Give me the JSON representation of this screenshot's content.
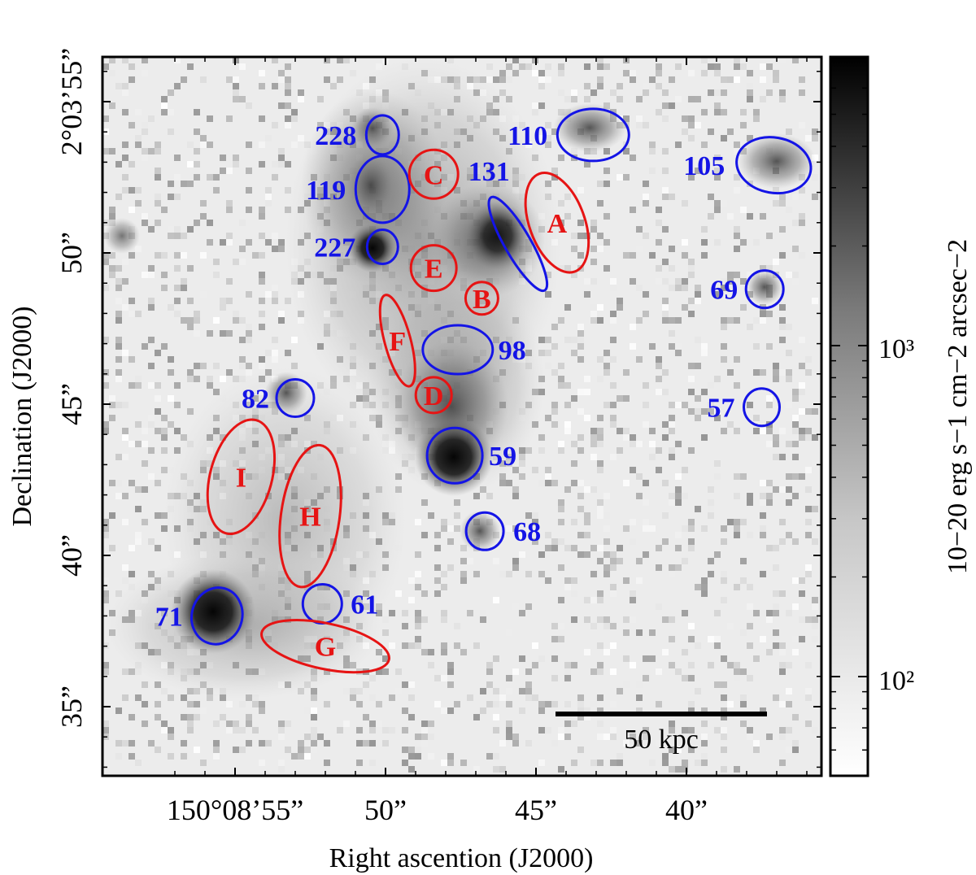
{
  "axes": {
    "x_title": "Right ascention (J2000)",
    "y_title": "Declination (J2000)",
    "x_ticks": [
      {
        "label": "150°08’55”",
        "ra_sec": 55
      },
      {
        "label": "50”",
        "ra_sec": 50
      },
      {
        "label": "45”",
        "ra_sec": 45
      },
      {
        "label": "40”",
        "ra_sec": 40
      }
    ],
    "y_ticks": [
      {
        "label": "2°03’55”",
        "dec_sec": 55
      },
      {
        "label": "50”",
        "dec_sec": 50
      },
      {
        "label": "45”",
        "dec_sec": 45
      },
      {
        "label": "40”",
        "dec_sec": 40
      },
      {
        "label": "35”",
        "dec_sec": 35
      }
    ]
  },
  "colorbar": {
    "label": "10−20 erg s−1 cm−2 arcsec−2",
    "tick_labels": [
      "10³",
      "10²"
    ]
  },
  "scale_bar": {
    "label": "50 kpc"
  },
  "colors": {
    "galaxy_marker": "#1414e6",
    "region_marker": "#e61414"
  },
  "galaxies": [
    {
      "id": "228",
      "ra_sec": 50.1,
      "dec_sec": 53.9
    },
    {
      "id": "119",
      "ra_sec": 50.1,
      "dec_sec": 52.1
    },
    {
      "id": "227",
      "ra_sec": 50.1,
      "dec_sec": 50.2
    },
    {
      "id": "131",
      "ra_sec": 45.6,
      "dec_sec": 50.3
    },
    {
      "id": "110",
      "ra_sec": 43.1,
      "dec_sec": 53.9
    },
    {
      "id": "105",
      "ra_sec": 37.1,
      "dec_sec": 52.9
    },
    {
      "id": "69",
      "ra_sec": 37.4,
      "dec_sec": 48.8
    },
    {
      "id": "98",
      "ra_sec": 47.6,
      "dec_sec": 46.8
    },
    {
      "id": "57",
      "ra_sec": 37.5,
      "dec_sec": 44.9
    },
    {
      "id": "82",
      "ra_sec": 53.0,
      "dec_sec": 45.2
    },
    {
      "id": "59",
      "ra_sec": 47.7,
      "dec_sec": 43.3
    },
    {
      "id": "68",
      "ra_sec": 46.7,
      "dec_sec": 40.8
    },
    {
      "id": "61",
      "ra_sec": 52.1,
      "dec_sec": 38.4
    },
    {
      "id": "71",
      "ra_sec": 55.6,
      "dec_sec": 38.0
    }
  ],
  "regions": [
    {
      "id": "C",
      "ra_sec": 48.4,
      "dec_sec": 52.6
    },
    {
      "id": "A",
      "ra_sec": 44.3,
      "dec_sec": 51.0
    },
    {
      "id": "E",
      "ra_sec": 48.4,
      "dec_sec": 49.5
    },
    {
      "id": "B",
      "ra_sec": 46.8,
      "dec_sec": 48.5
    },
    {
      "id": "F",
      "ra_sec": 49.6,
      "dec_sec": 47.1
    },
    {
      "id": "D",
      "ra_sec": 48.4,
      "dec_sec": 45.3
    },
    {
      "id": "I",
      "ra_sec": 54.8,
      "dec_sec": 42.6
    },
    {
      "id": "H",
      "ra_sec": 52.5,
      "dec_sec": 41.3
    },
    {
      "id": "G",
      "ra_sec": 52.0,
      "dec_sec": 37.0
    }
  ]
}
